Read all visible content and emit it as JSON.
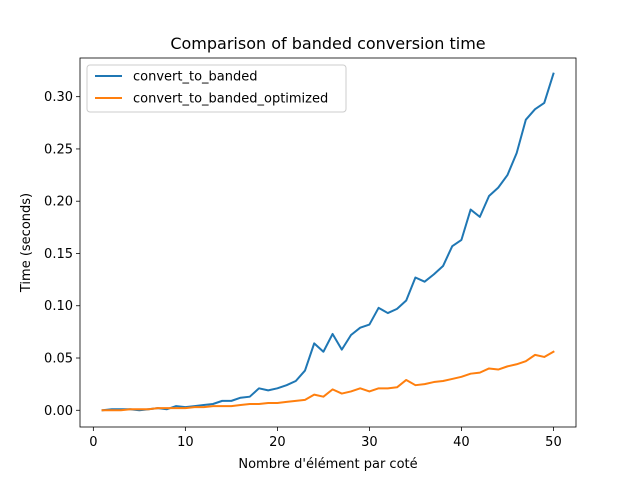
{
  "chart_data": {
    "type": "line",
    "title": "Comparison of banded conversion time",
    "xlabel": "Nombre d'élément par coté",
    "ylabel": "Time (seconds)",
    "xlim": [
      -1.45,
      52.45
    ],
    "ylim": [
      -0.016,
      0.337
    ],
    "xticks": [
      0,
      10,
      20,
      30,
      40,
      50
    ],
    "xtick_labels": [
      "0",
      "10",
      "20",
      "30",
      "40",
      "50"
    ],
    "yticks": [
      0.0,
      0.05,
      0.1,
      0.15,
      0.2,
      0.25,
      0.3
    ],
    "ytick_labels": [
      "0.00",
      "0.05",
      "0.10",
      "0.15",
      "0.20",
      "0.25",
      "0.30"
    ],
    "grid": false,
    "legend_position": "top-left",
    "x": [
      1,
      2,
      3,
      4,
      5,
      6,
      7,
      8,
      9,
      10,
      11,
      12,
      13,
      14,
      15,
      16,
      17,
      18,
      19,
      20,
      21,
      22,
      23,
      24,
      25,
      26,
      27,
      28,
      29,
      30,
      31,
      32,
      33,
      34,
      35,
      36,
      37,
      38,
      39,
      40,
      41,
      42,
      43,
      44,
      45,
      46,
      47,
      48,
      49,
      50
    ],
    "series": [
      {
        "name": "convert_to_banded",
        "color": "#1f77b4",
        "values": [
          0.0,
          0.001,
          0.001,
          0.001,
          0.0,
          0.001,
          0.002,
          0.001,
          0.004,
          0.003,
          0.004,
          0.005,
          0.006,
          0.009,
          0.009,
          0.012,
          0.013,
          0.021,
          0.019,
          0.021,
          0.024,
          0.028,
          0.038,
          0.064,
          0.056,
          0.073,
          0.058,
          0.072,
          0.079,
          0.082,
          0.098,
          0.093,
          0.097,
          0.105,
          0.127,
          0.123,
          0.13,
          0.138,
          0.157,
          0.163,
          0.192,
          0.185,
          0.205,
          0.213,
          0.225,
          0.246,
          0.278,
          0.288,
          0.294,
          0.322
        ]
      },
      {
        "name": "convert_to_banded_optimized",
        "color": "#ff7f0e",
        "values": [
          0.0,
          0.0,
          0.0,
          0.001,
          0.001,
          0.001,
          0.002,
          0.002,
          0.002,
          0.002,
          0.003,
          0.003,
          0.004,
          0.004,
          0.004,
          0.005,
          0.006,
          0.006,
          0.007,
          0.007,
          0.008,
          0.009,
          0.01,
          0.015,
          0.013,
          0.02,
          0.016,
          0.018,
          0.021,
          0.018,
          0.021,
          0.021,
          0.022,
          0.029,
          0.024,
          0.025,
          0.027,
          0.028,
          0.03,
          0.032,
          0.035,
          0.036,
          0.04,
          0.039,
          0.042,
          0.044,
          0.047,
          0.053,
          0.051,
          0.056
        ]
      }
    ]
  }
}
